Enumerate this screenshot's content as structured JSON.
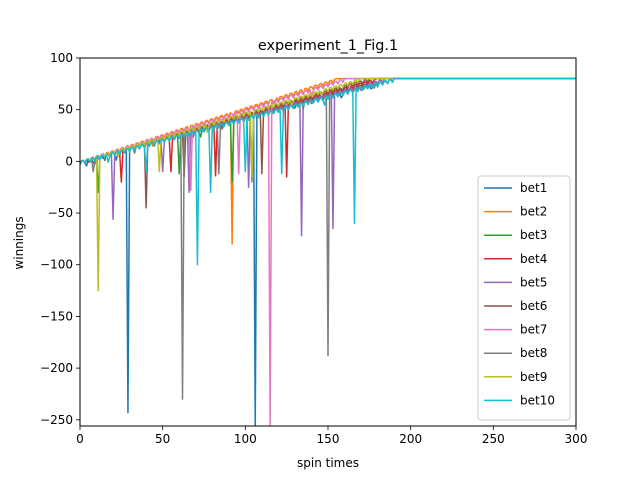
{
  "chart_data": {
    "type": "line",
    "title": "experiment_1_Fig.1",
    "xlabel": "spin times",
    "ylabel": "winnings",
    "xlim": [
      0,
      300
    ],
    "ylim": [
      -256,
      100
    ],
    "xticks": [
      0,
      50,
      100,
      150,
      200,
      250,
      300
    ],
    "yticks": [
      -250,
      -200,
      -150,
      -100,
      -50,
      0,
      50,
      100
    ],
    "xtick_labels": [
      "0",
      "50",
      "100",
      "150",
      "200",
      "250",
      "300"
    ],
    "ytick_labels": [
      "−250",
      "−200",
      "−150",
      "−100",
      "−50",
      "0",
      "50",
      "100"
    ],
    "grid": false,
    "legend_position": "lower right",
    "plateau_value": 80,
    "series": [
      {
        "name": "bet1",
        "color": "#1f77b4",
        "finish": 190,
        "dips": [
          [
            4,
            -6
          ],
          [
            8,
            -5
          ],
          [
            14,
            -3
          ],
          [
            22,
            -8
          ],
          [
            29,
            -243
          ],
          [
            45,
            -4
          ],
          [
            68,
            -6
          ],
          [
            106,
            -256
          ],
          [
            130,
            -3
          ],
          [
            158,
            -5
          ],
          [
            176,
            -4
          ]
        ]
      },
      {
        "name": "bet2",
        "color": "#ff7f0e",
        "finish": 155,
        "dips": [
          [
            6,
            -4
          ],
          [
            18,
            -3
          ],
          [
            44,
            -8
          ],
          [
            66,
            -6
          ],
          [
            92,
            -80
          ],
          [
            118,
            -4
          ],
          [
            135,
            -5
          ]
        ]
      },
      {
        "name": "bet3",
        "color": "#2ca02c",
        "finish": 185,
        "dips": [
          [
            11,
            -30
          ],
          [
            24,
            -5
          ],
          [
            60,
            -12
          ],
          [
            73,
            -8
          ],
          [
            92,
            -20
          ],
          [
            135,
            -8
          ],
          [
            150,
            -3
          ],
          [
            172,
            -4
          ]
        ]
      },
      {
        "name": "bet4",
        "color": "#d62728",
        "finish": 180,
        "dips": [
          [
            5,
            -3
          ],
          [
            25,
            -20
          ],
          [
            55,
            -10
          ],
          [
            82,
            -14
          ],
          [
            125,
            -15
          ],
          [
            146,
            -4
          ],
          [
            163,
            -3
          ]
        ]
      },
      {
        "name": "bet5",
        "color": "#9467bd",
        "finish": 185,
        "dips": [
          [
            10,
            -8
          ],
          [
            20,
            -56
          ],
          [
            50,
            -10
          ],
          [
            66,
            -30
          ],
          [
            102,
            -25
          ],
          [
            134,
            -72
          ],
          [
            153,
            -65
          ],
          [
            170,
            -5
          ]
        ]
      },
      {
        "name": "bet6",
        "color": "#8c564b",
        "finish": 175,
        "dips": [
          [
            15,
            -6
          ],
          [
            40,
            -45
          ],
          [
            63,
            -15
          ],
          [
            86,
            -8
          ],
          [
            110,
            -12
          ],
          [
            140,
            -8
          ],
          [
            158,
            -4
          ]
        ]
      },
      {
        "name": "bet7",
        "color": "#e377c2",
        "finish": 160,
        "dips": [
          [
            12,
            -4
          ],
          [
            30,
            -6
          ],
          [
            67,
            -28
          ],
          [
            96,
            -12
          ],
          [
            115,
            -256
          ],
          [
            140,
            -6
          ]
        ]
      },
      {
        "name": "bet8",
        "color": "#7f7f7f",
        "finish": 190,
        "dips": [
          [
            8,
            -10
          ],
          [
            33,
            -6
          ],
          [
            62,
            -230
          ],
          [
            84,
            -12
          ],
          [
            104,
            -20
          ],
          [
            150,
            -188
          ],
          [
            178,
            -4
          ]
        ]
      },
      {
        "name": "bet9",
        "color": "#bcbd22",
        "finish": 170,
        "dips": [
          [
            11,
            -125
          ],
          [
            23,
            -6
          ],
          [
            48,
            -10
          ],
          [
            77,
            -8
          ],
          [
            104,
            -15
          ],
          [
            128,
            -6
          ],
          [
            146,
            -4
          ]
        ]
      },
      {
        "name": "bet10",
        "color": "#17becf",
        "finish": 190,
        "dips": [
          [
            6,
            -3
          ],
          [
            17,
            -8
          ],
          [
            40,
            -10
          ],
          [
            71,
            -100
          ],
          [
            79,
            -30
          ],
          [
            100,
            -10
          ],
          [
            122,
            -12
          ],
          [
            148,
            -8
          ],
          [
            166,
            -60
          ],
          [
            180,
            -4
          ]
        ]
      }
    ]
  }
}
